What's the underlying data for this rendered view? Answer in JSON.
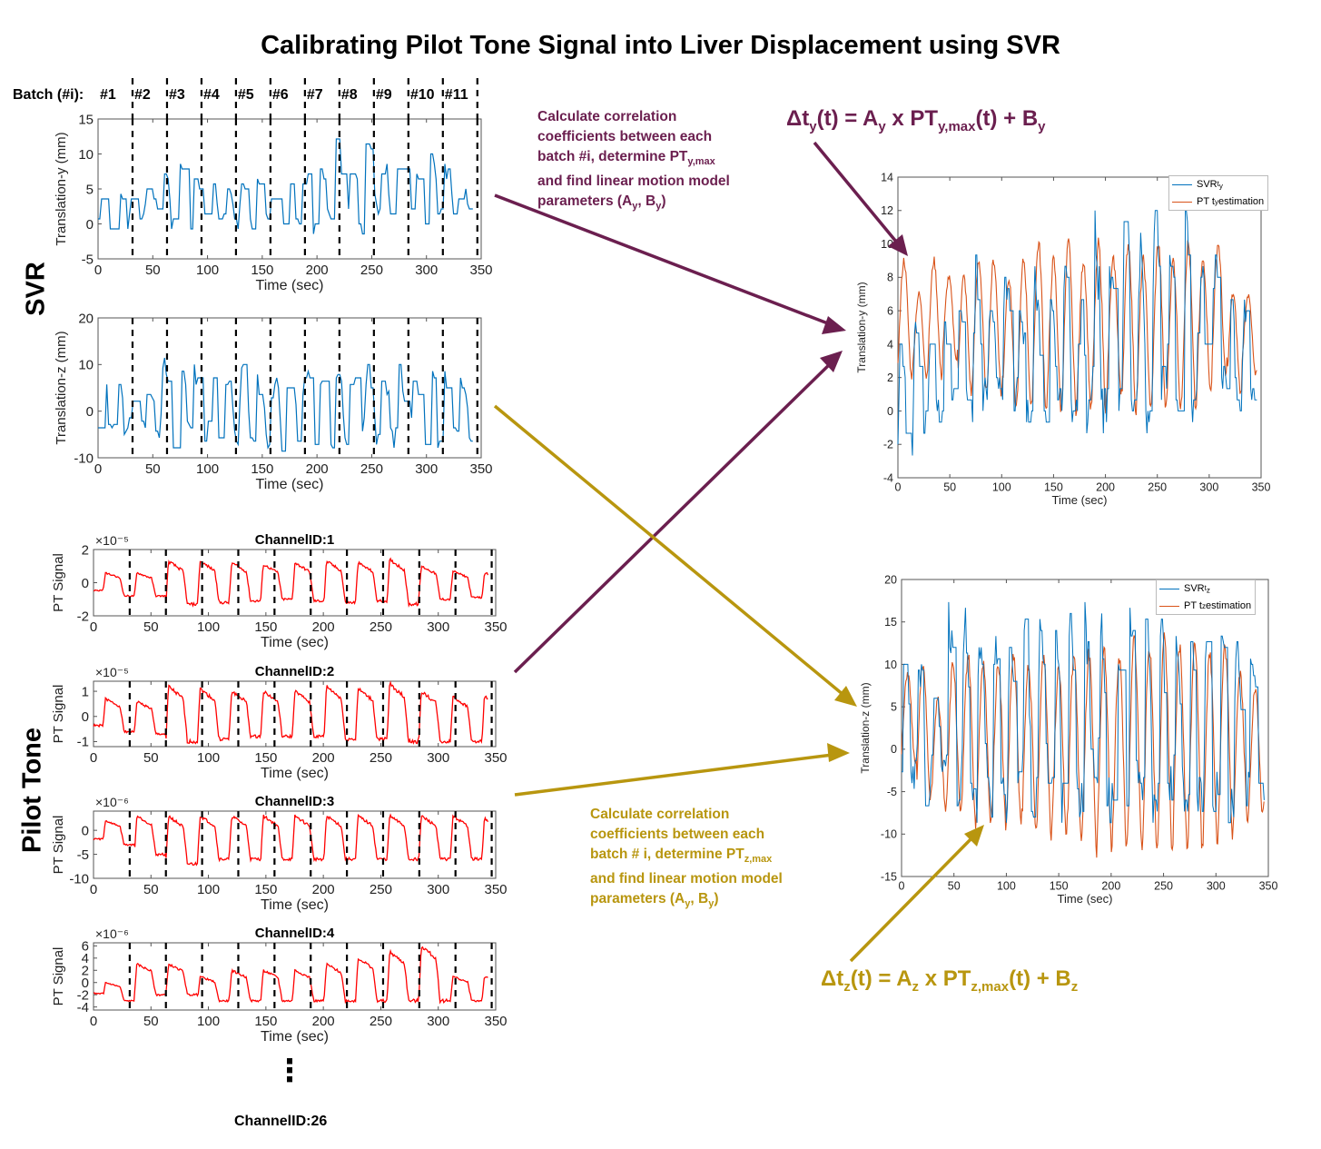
{
  "title": "Calibrating Pilot Tone Signal into Liver Displacement using SVR",
  "batch_header": {
    "prefix": "Batch (#i):",
    "labels": [
      "#1",
      "#2",
      "#3",
      "#4",
      "#5",
      "#6",
      "#7",
      "#8",
      "#9",
      "#10",
      "#11"
    ]
  },
  "section_labels": {
    "svr": "SVR",
    "pilot_tone": "Pilot Tone"
  },
  "notes": {
    "y": {
      "l1": "Calculate correlation",
      "l2": "coefficients between each",
      "l3a": "batch #i, determine PT",
      "l3sub": "y,max",
      "l4": "and find linear motion model",
      "l5a": "parameters (A",
      "l5s1": "y",
      "l5b": ", B",
      "l5s2": "y",
      "l5c": ")"
    },
    "z": {
      "l1": "Calculate correlation",
      "l2": "coefficients between each",
      "l3a": "batch # i, determine PT",
      "l3sub": "z,max",
      "l4": "and find linear motion model",
      "l5a": "parameters (A",
      "l5s1": "y",
      "l5b": ", B",
      "l5s2": "y",
      "l5c": ")"
    }
  },
  "equations": {
    "y": {
      "a": "Δt",
      "s1": "y",
      "b": "(t) = A",
      "s2": "y",
      "c": " x PT",
      "s3": "y,max",
      "d": "(t) + B",
      "s4": "y"
    },
    "z": {
      "a": "Δt",
      "s1": "z",
      "b": "(t) = A",
      "s2": "z",
      "c": " x PT",
      "s3": "z,max",
      "d": "(t) + B",
      "s4": "z"
    }
  },
  "colors": {
    "svr": "#0072bd",
    "pt_est": "#d95319",
    "pt_signal": "#ff0000",
    "arrow_y": "#6b1f4f",
    "arrow_z": "#b8960f"
  },
  "more_channels": {
    "dots": "⋮",
    "last": "ChannelID:26"
  },
  "legend_y": {
    "svr_a": "SVR",
    "svr_sub": "t",
    "svr_subsub": "y",
    "pt_a": "PT t",
    "pt_sub": "y",
    "pt_b": " estimation"
  },
  "legend_z": {
    "svr_a": "SVR",
    "svr_sub": "t",
    "svr_subsub": "z",
    "pt_a": "PT t",
    "pt_sub": "z",
    "pt_b": " estimation"
  },
  "chart_data": [
    {
      "id": "svr_ty",
      "type": "line",
      "title": "",
      "xlabel": "Time (sec)",
      "ylabel": "Translation-y (mm)",
      "xlim": [
        0,
        350
      ],
      "ylim": [
        -5,
        15
      ],
      "xticks": [
        0,
        50,
        100,
        150,
        200,
        250,
        300,
        350
      ],
      "yticks": [
        -5,
        0,
        5,
        10,
        15
      ],
      "batch_boundaries_sec": [
        31.5,
        63,
        94.5,
        126,
        157.5,
        189,
        220.5,
        252,
        283.5,
        315,
        346.5
      ],
      "series": [
        {
          "name": "SVR ty",
          "color": "#0072bd",
          "amplitude": [
            4,
            6,
            3,
            3,
            7,
            8,
            5,
            7,
            5,
            6,
            5,
            7,
            6,
            8,
            7,
            10,
            9,
            11,
            9,
            9,
            8,
            9,
            7,
            6
          ],
          "baseline": [
            0,
            0,
            1,
            2,
            0,
            0,
            1,
            0,
            0,
            0,
            1,
            0,
            0,
            0,
            1,
            1,
            0,
            1,
            0,
            0,
            1,
            2,
            1,
            1
          ]
        }
      ]
    },
    {
      "id": "svr_tz",
      "type": "line",
      "title": "",
      "xlabel": "Time (sec)",
      "ylabel": "Translation-z (mm)",
      "xlim": [
        0,
        350
      ],
      "ylim": [
        -10,
        20
      ],
      "xticks": [
        0,
        50,
        100,
        150,
        200,
        250,
        300,
        350
      ],
      "yticks": [
        -10,
        0,
        10,
        20
      ],
      "batch_boundaries_sec": [
        31.5,
        63,
        94.5,
        126,
        157.5,
        189,
        220.5,
        252,
        283.5,
        315,
        346.5
      ],
      "series": [
        {
          "name": "SVR tz",
          "color": "#0072bd",
          "amplitude": [
            10,
            12,
            5,
            8,
            16,
            15,
            14,
            13,
            14,
            15,
            13,
            14,
            15,
            15,
            14,
            15,
            14,
            15,
            14,
            15,
            13,
            14,
            13,
            12
          ],
          "baseline": [
            -3,
            -5,
            -2,
            -4,
            -6,
            -5,
            -6,
            -5,
            -6,
            -5,
            -6,
            -6,
            -5,
            -6,
            -6,
            -5,
            -6,
            -5,
            -6,
            -6,
            -5,
            -6,
            -5,
            -5
          ]
        }
      ]
    },
    {
      "id": "pt_ch1",
      "type": "line",
      "title": "ChannelID:1",
      "xlabel": "Time (sec)",
      "ylabel": "PT Signal",
      "scale_label": "×10⁻⁵",
      "xlim": [
        0,
        350
      ],
      "ylim": [
        -2,
        2
      ],
      "xticks": [
        0,
        50,
        100,
        150,
        200,
        250,
        300,
        350
      ],
      "yticks": [
        -2,
        0,
        2
      ],
      "batch_boundaries_sec": [
        31.5,
        63,
        94.5,
        126,
        157.5,
        189,
        220.5,
        252,
        283.5,
        315,
        346.5
      ],
      "series": [
        {
          "name": "ChannelID:1",
          "color": "#ff0000",
          "high": [
            0.6,
            0.6,
            1.3,
            1.3,
            1.2,
            1.1,
            1.2,
            1.3,
            1.2,
            1.4,
            1.0,
            0.7,
            0.6
          ],
          "low": [
            -0.8,
            -0.8,
            -1.3,
            -1.2,
            -1.1,
            -1.0,
            -1.1,
            -1.2,
            -1.1,
            -1.3,
            -1.0,
            -0.9,
            -1.0
          ]
        }
      ]
    },
    {
      "id": "pt_ch2",
      "type": "line",
      "title": "ChannelID:2",
      "xlabel": "Time (sec)",
      "ylabel": "PT Signal",
      "scale_label": "×10⁻⁵",
      "xlim": [
        0,
        350
      ],
      "ylim": [
        -1.2,
        1.4
      ],
      "xticks": [
        0,
        50,
        100,
        150,
        200,
        250,
        300,
        350
      ],
      "yticks": [
        -1,
        0,
        1
      ],
      "batch_boundaries_sec": [
        31.5,
        63,
        94.5,
        126,
        157.5,
        189,
        220.5,
        252,
        283.5,
        315,
        346.5
      ],
      "series": [
        {
          "name": "ChannelID:2",
          "color": "#ff0000",
          "high": [
            0.7,
            0.6,
            1.2,
            1.1,
            1.0,
            1.0,
            1.0,
            1.2,
            1.1,
            1.3,
            1.0,
            0.8,
            0.8
          ],
          "low": [
            -0.6,
            -0.7,
            -1.0,
            -0.9,
            -0.8,
            -0.8,
            -0.8,
            -0.9,
            -0.9,
            -1.0,
            -1.0,
            -1.0,
            -1.0
          ]
        }
      ]
    },
    {
      "id": "pt_ch3",
      "type": "line",
      "title": "ChannelID:3",
      "xlabel": "Time (sec)",
      "ylabel": "PT Signal",
      "scale_label": "×10⁻⁶",
      "xlim": [
        0,
        350
      ],
      "ylim": [
        -10,
        4
      ],
      "xticks": [
        0,
        50,
        100,
        150,
        200,
        250,
        300,
        350
      ],
      "yticks": [
        -10,
        -5,
        0
      ],
      "batch_boundaries_sec": [
        31.5,
        63,
        94.5,
        126,
        157.5,
        189,
        220.5,
        252,
        283.5,
        315,
        346.5
      ],
      "series": [
        {
          "name": "ChannelID:3",
          "color": "#ff0000",
          "high": [
            2,
            3,
            3,
            3,
            3,
            3,
            3,
            3,
            3,
            3,
            3,
            3,
            2.5
          ],
          "low": [
            -3,
            -5,
            -7,
            -6,
            -6,
            -6,
            -6,
            -6,
            -6,
            -6,
            -6,
            -6,
            -6
          ]
        }
      ]
    },
    {
      "id": "pt_ch4",
      "type": "line",
      "title": "ChannelID:4",
      "xlabel": "Time (sec)",
      "ylabel": "PT Signal",
      "scale_label": "×10⁻⁶",
      "xlim": [
        0,
        350
      ],
      "ylim": [
        -4.5,
        6.5
      ],
      "xticks": [
        0,
        50,
        100,
        150,
        200,
        250,
        300,
        350
      ],
      "yticks": [
        -4,
        -2,
        0,
        2,
        4,
        6
      ],
      "batch_boundaries_sec": [
        31.5,
        63,
        94.5,
        126,
        157.5,
        189,
        220.5,
        252,
        283.5,
        315,
        346.5
      ],
      "series": [
        {
          "name": "ChannelID:4",
          "color": "#ff0000",
          "high": [
            0,
            3,
            3,
            1,
            2,
            2,
            2,
            3,
            4,
            5,
            6,
            1,
            1
          ],
          "low": [
            -3,
            -2,
            -2,
            -3,
            -3,
            -3,
            -3,
            -3,
            -3,
            -3,
            -3,
            -3,
            -3
          ]
        }
      ]
    },
    {
      "id": "fit_ty",
      "type": "line",
      "title": "",
      "xlabel": "Time (sec)",
      "ylabel": "Translation-y (mm)",
      "xlim": [
        0,
        350
      ],
      "ylim": [
        -4,
        14
      ],
      "xticks": [
        0,
        50,
        100,
        150,
        200,
        250,
        300,
        350
      ],
      "yticks": [
        -4,
        -2,
        0,
        2,
        4,
        6,
        8,
        10,
        12,
        14
      ],
      "series": [
        {
          "name": "SVR ty",
          "color": "#0072bd",
          "peaks": [
            4,
            6,
            4,
            5,
            7,
            9,
            6,
            9,
            6,
            8,
            7,
            9,
            8,
            11,
            9,
            12,
            10,
            12,
            11,
            13,
            10,
            9,
            8,
            6
          ],
          "troughs": [
            -2,
            -1,
            0,
            1,
            0,
            1,
            2,
            1,
            0,
            0,
            1,
            0,
            0,
            0,
            1,
            1,
            0,
            1,
            0,
            0,
            1,
            2,
            1,
            1
          ]
        },
        {
          "name": "PT ty estimation",
          "color": "#d95319",
          "peaks": [
            9,
            7,
            9,
            8,
            8,
            9,
            9,
            8,
            9,
            10,
            9,
            10,
            9,
            10,
            9,
            10,
            9,
            10,
            9,
            10,
            9,
            10,
            7,
            7
          ],
          "troughs": [
            2,
            2,
            2,
            3,
            1,
            1,
            1,
            0,
            0,
            0,
            0,
            0,
            0,
            0,
            1,
            0,
            0,
            0,
            0,
            0,
            1,
            2,
            1,
            2
          ]
        }
      ]
    },
    {
      "id": "fit_tz",
      "type": "line",
      "title": "",
      "xlabel": "Time (sec)",
      "ylabel": "Translation-z (mm)",
      "xlim": [
        0,
        350
      ],
      "ylim": [
        -15,
        20
      ],
      "xticks": [
        0,
        50,
        100,
        150,
        200,
        250,
        300,
        350
      ],
      "yticks": [
        -15,
        -10,
        -5,
        0,
        5,
        10,
        15,
        20
      ],
      "series": [
        {
          "name": "SVR tz",
          "color": "#0072bd",
          "peaks": [
            10,
            12,
            6,
            15,
            16,
            15,
            14,
            13,
            14,
            15,
            13,
            14,
            15,
            15,
            14,
            15,
            14,
            15,
            14,
            15,
            13,
            14,
            13,
            12
          ],
          "troughs": [
            -3,
            -5,
            -2,
            -4,
            -6,
            -5,
            -6,
            -5,
            -6,
            -5,
            -6,
            -6,
            -5,
            -6,
            -6,
            -5,
            -6,
            -5,
            -6,
            -6,
            -5,
            -6,
            -5,
            -5
          ]
        },
        {
          "name": "PT tz estimation",
          "color": "#d95319",
          "peaks": [
            9,
            10,
            6,
            10,
            11,
            10,
            10,
            11,
            10,
            11,
            10,
            11,
            11,
            12,
            11,
            13,
            12,
            13,
            12,
            13,
            11,
            12,
            9,
            7
          ],
          "troughs": [
            -2,
            -6,
            -7,
            -8,
            -9,
            -9,
            -9,
            -9,
            -10,
            -10,
            -10,
            -11,
            -12,
            -12,
            -12,
            -12,
            -12,
            -12,
            -12,
            -12,
            -11,
            -10,
            -9,
            -8
          ]
        }
      ]
    }
  ]
}
